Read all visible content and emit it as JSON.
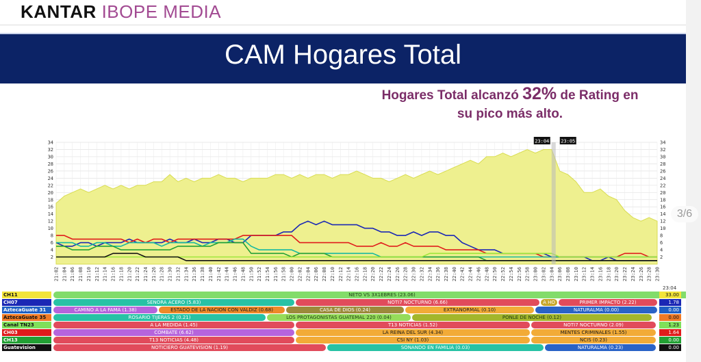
{
  "logo": {
    "brand": "KANTAR",
    "product": "IBOPE MEDIA"
  },
  "banner": {
    "title": "CAM Hogares Total"
  },
  "headline": {
    "part1": "Hogares Total alcanzó ",
    "peak": "32%",
    "part2": " de Rating en",
    "line2": "su pico más alto."
  },
  "pager": {
    "text": "3/6"
  },
  "colors": {
    "banner": "#0c2366",
    "headline": "#7b2d68",
    "area_fill": "#eef08f",
    "area_stroke": "#d8dc50"
  },
  "chart_data": {
    "type": "line",
    "x_ticks": [
      "21:02",
      "21:04",
      "21:06",
      "21:08",
      "21:10",
      "21:12",
      "21:14",
      "21:16",
      "21:18",
      "21:20",
      "21:22",
      "21:24",
      "21:26",
      "21:28",
      "21:30",
      "21:32",
      "21:34",
      "21:36",
      "21:38",
      "21:40",
      "21:42",
      "21:44",
      "21:46",
      "21:48",
      "21:50",
      "21:52",
      "21:54",
      "21:56",
      "21:58",
      "22:00",
      "22:02",
      "22:04",
      "22:06",
      "22:08",
      "22:10",
      "22:12",
      "22:14",
      "22:16",
      "22:18",
      "22:20",
      "22:22",
      "22:24",
      "22:26",
      "22:28",
      "22:30",
      "22:32",
      "22:34",
      "22:36",
      "22:38",
      "22:40",
      "22:42",
      "22:44",
      "22:46",
      "22:48",
      "22:50",
      "22:52",
      "22:54",
      "22:56",
      "22:58",
      "23:00",
      "23:02",
      "23:04",
      "23:06",
      "23:08",
      "23:10",
      "23:12",
      "23:14",
      "23:16",
      "23:18",
      "23:20",
      "23:22",
      "23:24",
      "23:26",
      "23:28",
      "23:30"
    ],
    "y_ticks": [
      2,
      4,
      6,
      8,
      10,
      12,
      14,
      16,
      18,
      20,
      22,
      24,
      26,
      28,
      30,
      32,
      34
    ],
    "ylim": [
      0,
      34
    ],
    "grid": true,
    "markers": [
      "23:04",
      "23:05"
    ],
    "series": [
      {
        "name": "Hogares Total",
        "color": "#eef08f",
        "kind": "area",
        "values": [
          17,
          19,
          20,
          21,
          20,
          21,
          22,
          21,
          22,
          21,
          22,
          22,
          23,
          23,
          25,
          23,
          24,
          23,
          24,
          24,
          25,
          24,
          24,
          23,
          24,
          24,
          24,
          25,
          25,
          24,
          25,
          24,
          25,
          25,
          24,
          25,
          25,
          26,
          25,
          24,
          24,
          23,
          24,
          25,
          24,
          25,
          26,
          25,
          26,
          27,
          28,
          29,
          28,
          30,
          30,
          31,
          30,
          31,
          32,
          31,
          32,
          32,
          26,
          25,
          23,
          20,
          20,
          21,
          19,
          18,
          15,
          13,
          12,
          13,
          12
        ]
      },
      {
        "name": "CH07",
        "color": "#1a27b5",
        "values": [
          6,
          5,
          5,
          6,
          6,
          5,
          6,
          6,
          6,
          7,
          6,
          6,
          6,
          6,
          7,
          6,
          6,
          7,
          6,
          6,
          7,
          7,
          6,
          6,
          8,
          8,
          8,
          8,
          9,
          9,
          11,
          12,
          11,
          12,
          11,
          11,
          11,
          11,
          10,
          10,
          9,
          9,
          8,
          8,
          9,
          8,
          9,
          9,
          8,
          8,
          6,
          5,
          4,
          4,
          4,
          3,
          3,
          3,
          3,
          3,
          3,
          2,
          2,
          2,
          2,
          2,
          1,
          1,
          2,
          1,
          1,
          1,
          1,
          1,
          1
        ]
      },
      {
        "name": "CH03",
        "color": "#e01b1b",
        "values": [
          8,
          8,
          7,
          7,
          7,
          7,
          7,
          7,
          7,
          6,
          7,
          6,
          7,
          7,
          6,
          7,
          7,
          7,
          7,
          7,
          7,
          7,
          7,
          8,
          8,
          8,
          8,
          8,
          8,
          8,
          6,
          6,
          6,
          6,
          6,
          6,
          6,
          5,
          5,
          5,
          6,
          5,
          5,
          6,
          5,
          5,
          5,
          5,
          4,
          4,
          4,
          4,
          4,
          3,
          3,
          3,
          3,
          3,
          3,
          3,
          2,
          2,
          2,
          2,
          2,
          2,
          2,
          2,
          2,
          2,
          3,
          3,
          3,
          2,
          2
        ]
      },
      {
        "name": "AztecaGuate 31",
        "color": "#14b8a0",
        "values": [
          6,
          6,
          6,
          5,
          5,
          6,
          6,
          5,
          5,
          6,
          6,
          6,
          6,
          5,
          6,
          6,
          6,
          6,
          5,
          6,
          6,
          6,
          7,
          7,
          5,
          4,
          4,
          4,
          4,
          4,
          3,
          3,
          3,
          3,
          3,
          3,
          3,
          3,
          3,
          3,
          2,
          2,
          2,
          2,
          2,
          2,
          2,
          2,
          2,
          2,
          2,
          2,
          2,
          2,
          2,
          2,
          2,
          2,
          2,
          2,
          2,
          2,
          2,
          2,
          2,
          2,
          2,
          2,
          2,
          2,
          2,
          2,
          2,
          2,
          2
        ]
      },
      {
        "name": "CH13",
        "color": "#22a034",
        "values": [
          5,
          5,
          4,
          4,
          4,
          5,
          5,
          5,
          4,
          4,
          4,
          4,
          4,
          4,
          4,
          5,
          5,
          5,
          5,
          5,
          6,
          6,
          6,
          6,
          3,
          3,
          3,
          3,
          3,
          2,
          3,
          3,
          3,
          3,
          2,
          2,
          2,
          2,
          2,
          2,
          2,
          2,
          2,
          2,
          2,
          2,
          2,
          2,
          2,
          2,
          2,
          2,
          2,
          1,
          1,
          1,
          1,
          1,
          1,
          1,
          1,
          1,
          1,
          1,
          1,
          1,
          1,
          1,
          1,
          1,
          1,
          1,
          1,
          1,
          1
        ]
      },
      {
        "name": "Canal TN23",
        "color": "#9ee63a",
        "values": [
          2,
          2,
          2,
          2,
          2,
          2,
          2,
          2,
          2,
          2,
          2,
          2,
          2,
          2,
          2,
          2,
          2,
          2,
          2,
          2,
          2,
          2,
          2,
          2,
          2,
          2,
          2,
          2,
          2,
          2,
          2,
          2,
          2,
          2,
          2,
          2,
          2,
          2,
          2,
          2,
          2,
          2,
          2,
          2,
          2,
          2,
          3,
          3,
          3,
          3,
          3,
          3,
          3,
          3,
          3,
          3,
          3,
          3,
          3,
          3,
          3,
          3,
          2,
          2,
          2,
          2,
          2,
          2,
          2,
          2,
          2,
          2,
          2,
          2,
          2
        ]
      },
      {
        "name": "Guatevision",
        "color": "#111111",
        "values": [
          2,
          2,
          2,
          2,
          2,
          2,
          2,
          3,
          3,
          3,
          3,
          2,
          2,
          2,
          2,
          2,
          1,
          1,
          1,
          1,
          1,
          1,
          1,
          1,
          1,
          1,
          1,
          1,
          1,
          1,
          1,
          1,
          1,
          1,
          1,
          1,
          1,
          1,
          1,
          1,
          1,
          1,
          1,
          1,
          1,
          1,
          1,
          1,
          1,
          1,
          1,
          1,
          1,
          1,
          1,
          1,
          1,
          1,
          1,
          1,
          1,
          1,
          1,
          1,
          1,
          1,
          1,
          1,
          1,
          1,
          1,
          1,
          1,
          1,
          1
        ]
      }
    ]
  },
  "channels": {
    "end_time": "23:04",
    "rows": [
      {
        "label": "CH11",
        "label_bg": "#f3e43a",
        "label_color": "#111111",
        "value": "33.00",
        "value_bg": "#f3e43a",
        "value_color": "#111111",
        "segments": [
          {
            "text": "NETO VS 3X1EBRES (23.06)",
            "bg": "#82dc6a",
            "color": "#1b3a12"
          }
        ]
      },
      {
        "label": "CH07",
        "label_bg": "#1a27b5",
        "label_color": "#ffffff",
        "value": "1.78",
        "value_bg": "#1a27b5",
        "value_color": "#ffffff",
        "segments": [
          {
            "text": "SENORA ACERO (5.83)",
            "bg": "#27c2a5",
            "color": "#ffffff"
          },
          {
            "text": "NOTI7 NOCTURNO (6.66)",
            "bg": "#e14b5b",
            "color": "#ffffff"
          },
          {
            "text": "A HO",
            "bg": "#c7a72a",
            "color": "#ffffff"
          },
          {
            "text": "PRIMER IMPACTO (2.22)",
            "bg": "#e14b5b",
            "color": "#ffffff"
          }
        ]
      },
      {
        "label": "AztecaGuate 31",
        "label_bg": "#1e5fc4",
        "label_color": "#ffffff",
        "value": "0.00",
        "value_bg": "#1e5fc4",
        "value_color": "#ffffff",
        "segments": [
          {
            "text": "CAMINO A LA FAMA (1.38)",
            "bg": "#b664dc",
            "color": "#ffffff"
          },
          {
            "text": "ESTADO DE LA NACION CON VALDIZ (0.68)",
            "bg": "#ee8a29",
            "color": "#1a1a1a"
          },
          {
            "text": "CASA DE DIOS (0.24)",
            "bg": "#9c8a3b",
            "color": "#ffffff"
          },
          {
            "text": "EXTRANORMAL (0.10)",
            "bg": "#f2ab37",
            "color": "#1a1a1a"
          },
          {
            "text": "NATURALMA (0.00)",
            "bg": "#2a63c6",
            "color": "#ffffff"
          }
        ]
      },
      {
        "label": "AztecaGuate 35",
        "label_bg": "#ef7a25",
        "label_color": "#111111",
        "value": "0.00",
        "value_bg": "#ef7a25",
        "value_color": "#111111",
        "segments": [
          {
            "text": "ROSARIO TIJERAS 2 (0.21)",
            "bg": "#27c2a5",
            "color": "#ffffff"
          },
          {
            "text": "LOS PROTAGONISTAS GUATEMAL 220 (0.04)",
            "bg": "#96dc5a",
            "color": "#1b3a12"
          },
          {
            "text": "PONLE DE NOCHE (0.12)",
            "bg": "#a3b62b",
            "color": "#1b3a12"
          }
        ]
      },
      {
        "label": "Canal TN23",
        "label_bg": "#7fe05a",
        "label_color": "#111111",
        "value": "1.23",
        "value_bg": "#7fe05a",
        "value_color": "#111111",
        "segments": [
          {
            "text": "A LA MEDIDA (1.45)",
            "bg": "#e14b5b",
            "color": "#ffffff"
          },
          {
            "text": "T13 NOTICIAS (1.52)",
            "bg": "#e14b5b",
            "color": "#ffffff"
          },
          {
            "text": "NOTI7 NOCTURNO (2.09)",
            "bg": "#e14b5b",
            "color": "#ffffff"
          }
        ]
      },
      {
        "label": "CH03",
        "label_bg": "#e01b1b",
        "label_color": "#ffffff",
        "value": "1.64",
        "value_bg": "#e01b1b",
        "value_color": "#ffffff",
        "segments": [
          {
            "text": "COMBATE (6.62)",
            "bg": "#b664dc",
            "color": "#ffffff"
          },
          {
            "text": "LA REINA DEL SUR (4.34)",
            "bg": "#f2ab37",
            "color": "#1a1a1a"
          },
          {
            "text": "MENTES CRIMINALES (1.55)",
            "bg": "#f2ab37",
            "color": "#1a1a1a"
          }
        ]
      },
      {
        "label": "CH13",
        "label_bg": "#22a034",
        "label_color": "#ffffff",
        "value": "0.00",
        "value_bg": "#22a034",
        "value_color": "#ffffff",
        "segments": [
          {
            "text": "T13 NOTICIAS (4.48)",
            "bg": "#e14b5b",
            "color": "#ffffff"
          },
          {
            "text": "CSI NY (1.03)",
            "bg": "#f2ab37",
            "color": "#1a1a1a"
          },
          {
            "text": "NCIS (0.23)",
            "bg": "#f2ab37",
            "color": "#1a1a1a"
          }
        ]
      },
      {
        "label": "Guatevision",
        "label_bg": "#111111",
        "label_color": "#ffffff",
        "value": "0.00",
        "value_bg": "#111111",
        "value_color": "#ffffff",
        "segments": [
          {
            "text": "NOTICIERO GUATEVISION (1.19)",
            "bg": "#e14b5b",
            "color": "#ffffff"
          },
          {
            "text": "SONANDO EN FAMILIA (0.03)",
            "bg": "#27c2a5",
            "color": "#ffffff"
          },
          {
            "text": "NATURALMA (0.23)",
            "bg": "#2a63c6",
            "color": "#ffffff"
          }
        ]
      }
    ]
  }
}
